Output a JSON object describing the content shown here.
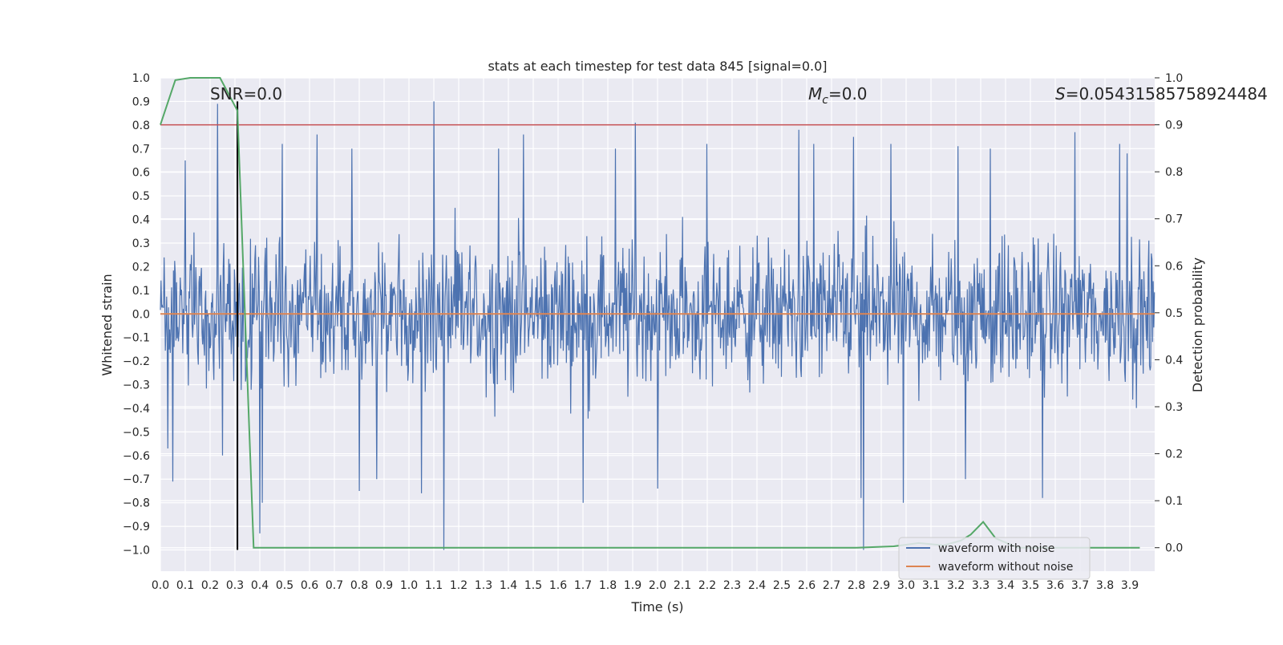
{
  "chart_data": {
    "type": "line",
    "title": "stats at each timestep for test data 845 [signal=0.0]",
    "xlabel": "Time (s)",
    "ylabel": "Whitened strain",
    "y2label": "Detection probability",
    "xlim": [
      0.0,
      4.0
    ],
    "ylim": [
      -1.09,
      1.0
    ],
    "y2lim": [
      -0.05,
      1.0
    ],
    "x_ticks": [
      "0.0",
      "0.1",
      "0.2",
      "0.3",
      "0.4",
      "0.5",
      "0.6",
      "0.7",
      "0.8",
      "0.9",
      "1.0",
      "1.1",
      "1.2",
      "1.3",
      "1.4",
      "1.5",
      "1.6",
      "1.7",
      "1.8",
      "1.9",
      "2.0",
      "2.1",
      "2.2",
      "2.3",
      "2.4",
      "2.5",
      "2.6",
      "2.7",
      "2.8",
      "2.9",
      "3.0",
      "3.1",
      "3.2",
      "3.3",
      "3.4",
      "3.5",
      "3.6",
      "3.7",
      "3.8",
      "3.9"
    ],
    "y_ticks": [
      "1.0",
      "0.9",
      "0.8",
      "0.7",
      "0.6",
      "0.5",
      "0.4",
      "0.3",
      "0.2",
      "0.1",
      "0.0",
      "−0.1",
      "−0.2",
      "−0.3",
      "−0.4",
      "−0.5",
      "−0.6",
      "−0.7",
      "−0.8",
      "−0.9",
      "−1.0"
    ],
    "y2_ticks": [
      "1.0",
      "0.9",
      "0.8",
      "0.7",
      "0.6",
      "0.5",
      "0.4",
      "0.3",
      "0.2",
      "0.1",
      "0.0"
    ],
    "annotations": {
      "snr": "SNR=0.0",
      "mc_symbol": "M",
      "mc_sub": "c",
      "mc_value": "=0.0",
      "s_symbol": "S",
      "s_value": "=0.05431585758924484"
    },
    "series": [
      {
        "name": "waveform with noise",
        "color": "#4c72b0",
        "kind": "noise",
        "sample_count": 1600,
        "typical_peak": 0.42,
        "peaks": [
          {
            "x": 0.03,
            "y": -0.57
          },
          {
            "x": 0.05,
            "y": -0.71
          },
          {
            "x": 0.1,
            "y": 0.65
          },
          {
            "x": 0.23,
            "y": 0.89
          },
          {
            "x": 0.25,
            "y": -0.6
          },
          {
            "x": 0.4,
            "y": -0.93
          },
          {
            "x": 0.41,
            "y": -0.8
          },
          {
            "x": 0.49,
            "y": 0.72
          },
          {
            "x": 0.63,
            "y": 0.76
          },
          {
            "x": 0.77,
            "y": 0.7
          },
          {
            "x": 0.8,
            "y": -0.75
          },
          {
            "x": 0.87,
            "y": -0.7
          },
          {
            "x": 1.05,
            "y": -0.76
          },
          {
            "x": 1.1,
            "y": 0.9
          },
          {
            "x": 1.14,
            "y": -1.0
          },
          {
            "x": 1.36,
            "y": 0.7
          },
          {
            "x": 1.46,
            "y": 0.76
          },
          {
            "x": 1.7,
            "y": -0.8
          },
          {
            "x": 1.83,
            "y": 0.7
          },
          {
            "x": 1.91,
            "y": 0.81
          },
          {
            "x": 2.0,
            "y": -0.74
          },
          {
            "x": 2.2,
            "y": 0.72
          },
          {
            "x": 2.57,
            "y": 0.78
          },
          {
            "x": 2.63,
            "y": 0.72
          },
          {
            "x": 2.79,
            "y": 0.75
          },
          {
            "x": 2.82,
            "y": -0.78
          },
          {
            "x": 2.83,
            "y": -1.0
          },
          {
            "x": 2.94,
            "y": 0.72
          },
          {
            "x": 2.99,
            "y": -0.8
          },
          {
            "x": 3.21,
            "y": 0.71
          },
          {
            "x": 3.24,
            "y": -0.7
          },
          {
            "x": 3.34,
            "y": 0.7
          },
          {
            "x": 3.55,
            "y": -0.78
          },
          {
            "x": 3.68,
            "y": 0.77
          },
          {
            "x": 3.86,
            "y": 0.72
          },
          {
            "x": 3.89,
            "y": 0.68
          }
        ]
      },
      {
        "name": "waveform without noise",
        "color": "#dd8452",
        "kind": "constant",
        "y": 0.0
      },
      {
        "name": "detection probability",
        "color": "#55a868",
        "axis": "right",
        "x": [
          0.0,
          0.06,
          0.12,
          0.18,
          0.24,
          0.31,
          0.375,
          0.6,
          1.2,
          2.0,
          2.8,
          2.95,
          3.05,
          3.15,
          3.22,
          3.26,
          3.31,
          3.36,
          3.45,
          3.6,
          3.94
        ],
        "y": [
          0.9,
          0.995,
          1.0,
          1.0,
          1.0,
          0.93,
          0.0,
          0.0,
          0.0,
          0.0,
          0.0,
          0.003,
          0.01,
          0.005,
          0.015,
          0.028,
          0.055,
          0.02,
          0.0,
          0.0,
          0.0
        ]
      }
    ],
    "threshold_right": 0.9,
    "threshold_color": "#c44e52",
    "vline_x": 0.31,
    "vline_y": [
      -1.0,
      0.9
    ],
    "legend": {
      "position": "lower-right",
      "entries": [
        "waveform with noise",
        "waveform without noise"
      ]
    }
  }
}
